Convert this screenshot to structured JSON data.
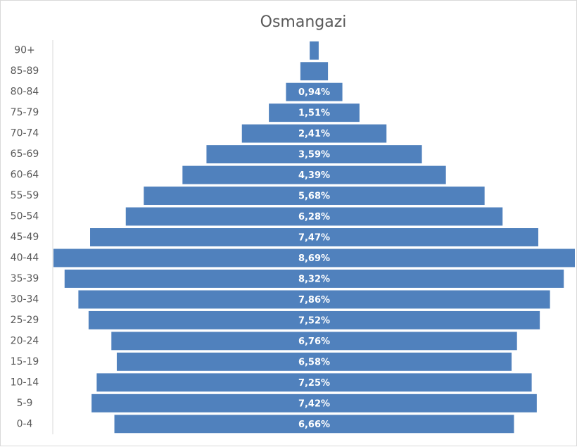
{
  "chart_data": {
    "type": "pyramid",
    "title": "Osmangazi",
    "color": "#5081bd",
    "categories": [
      "90+",
      "85-89",
      "80-84",
      "75-79",
      "70-74",
      "65-69",
      "60-64",
      "55-59",
      "50-54",
      "45-49",
      "40-44",
      "35-39",
      "30-34",
      "25-29",
      "20-24",
      "15-19",
      "10-14",
      "5-9",
      "0-4"
    ],
    "values": [
      0.15,
      0.46,
      0.94,
      1.51,
      2.41,
      3.59,
      4.39,
      5.68,
      6.28,
      7.47,
      8.69,
      8.32,
      7.86,
      7.52,
      6.76,
      6.58,
      7.25,
      7.42,
      6.66
    ],
    "value_labels": [
      null,
      null,
      "0,94%",
      "1,51%",
      "2,41%",
      "3,59%",
      "4,39%",
      "5,68%",
      "6,28%",
      "7,47%",
      "8,69%",
      "8,32%",
      "7,86%",
      "7,52%",
      "6,76%",
      "6,58%",
      "7,25%",
      "7,42%",
      "6,66%"
    ]
  }
}
